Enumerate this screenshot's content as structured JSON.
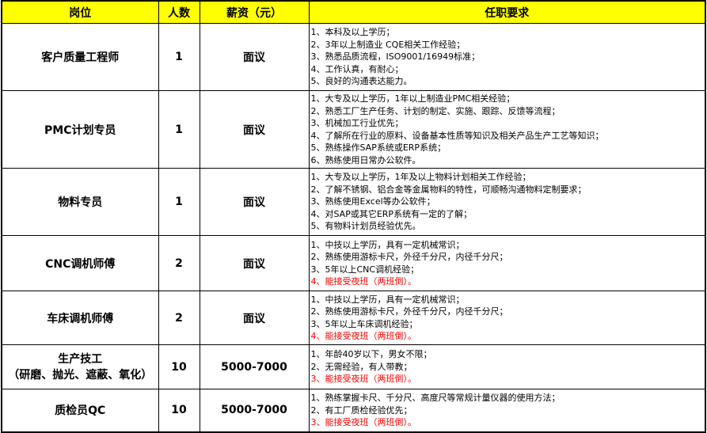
{
  "table": {
    "headers": [
      "岗位",
      "人数",
      "薪资（元）",
      "任职要求"
    ],
    "rows": [
      {
        "position": "客户质量工程师",
        "count": 1,
        "salary": "面议",
        "requirements": [
          "1、本科及以上学历；",
          "2、3年以上制造业 CQE相关工作经验；",
          "3、熟悉品质流程，ISO9001/16949标准；",
          "4、工作认真，有耐心；",
          "5、良好的沟通表达能力。"
        ]
      },
      {
        "position": "PMC计划专员",
        "count": 1,
        "salary": "面议",
        "requirements": [
          "1、大专及以上学历，1年以上制造业PMC相关经验；",
          "2、熟悉工厂生产任务、计划的制定、实施、跟踪、反馈等流程；",
          "3、机械加工行业优先；",
          "4、了解所在行业的原料、设备基本性质等知识及相关产品生产工艺等知识；",
          "5、熟练操作SAP系统或ERP系统；",
          "6、熟练使用日常办公软件。"
        ]
      },
      {
        "position": "物料专员",
        "count": 1,
        "salary": "面议",
        "requirements": [
          "1、大专及以上学历，1年及以上物料计划相关工作经验；",
          "2、了解不锈钢、铝合金等金属物料的特性，可顺畅沟通物料定制要求；",
          "3、熟练使用Excel等办公软件；",
          "4、对SAP或其它ERP系统有一定的了解；",
          "5、有物料计划员经验优先。"
        ]
      },
      {
        "position": "CNC调机师傅",
        "count": 2,
        "salary": "面议",
        "requirements": [
          "1、中技以上学历，具有一定机械常识；",
          "2、熟练使用游标卡尺，外径千分尺，内径千分尺；",
          "3、5年以上CNC调机经验；",
          {
            "text": "4、能接受夜班（两班倒）。",
            "color": "#ff0000"
          }
        ]
      },
      {
        "position": "车床调机师傅",
        "count": 2,
        "salary": "面议",
        "requirements": [
          "1、中技以上学历，具有一定机械常识；",
          "2、熟练使用游标卡尺，外径千分尺，内径千分尺；",
          "3、5年以上车床调机经验；",
          {
            "text": "4、能接受夜班（两班倒）。",
            "color": "#ff0000"
          }
        ]
      },
      {
        "position": [
          "生产技工",
          "（研磨、抛光、遮蔽、氧化）"
        ],
        "count": 10,
        "salary": "5000-7000",
        "requirements": [
          "1、年龄40岁以下，男女不限；",
          "2、无需经验，有人带教；",
          {
            "text": "3、能接受夜班（两班倒）。",
            "color": "#ff0000"
          }
        ]
      },
      {
        "position": "质检员QC",
        "count": 10,
        "salary": "5000-7000",
        "requirements": [
          "1、熟练掌握卡尺、千分尺、高度尺等常规计量仪器的使用方法；",
          "2、有工厂质检经验优先；",
          {
            "text": "3、能接受夜班（两班倒）。",
            "color": "#ff0000"
          }
        ]
      }
    ]
  }
}
